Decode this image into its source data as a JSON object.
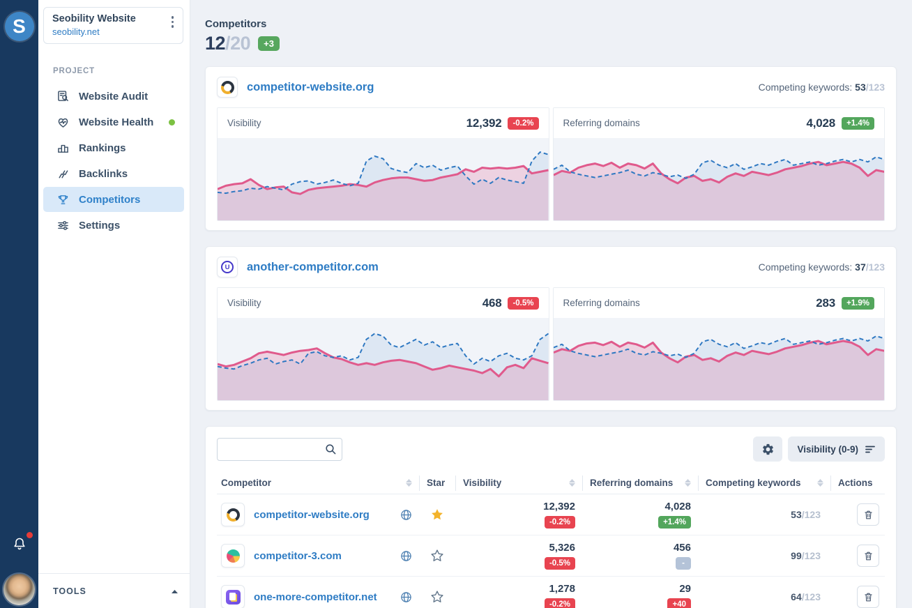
{
  "brand": {
    "logo_letter": "S"
  },
  "sidebar": {
    "project_card": {
      "title": "Seobility Website",
      "domain": "seobility.net"
    },
    "section_label": "PROJECT",
    "items": [
      {
        "label": "Website Audit"
      },
      {
        "label": "Website Health",
        "dot": true
      },
      {
        "label": "Rankings"
      },
      {
        "label": "Backlinks"
      },
      {
        "label": "Competitors",
        "active": true
      },
      {
        "label": "Settings"
      }
    ],
    "tools_label": "TOOLS"
  },
  "header": {
    "title": "Competitors",
    "count_used": "12",
    "count_sep": "/",
    "count_total": "20",
    "badge": "+3"
  },
  "cards": [
    {
      "domain": "competitor-website.org",
      "competing_label": "Competing keywords:",
      "competing_value": "53",
      "competing_total": "/123",
      "panels": [
        {
          "label": "Visibility",
          "value": "12,392",
          "badge": "-0.2%",
          "badge_type": "red"
        },
        {
          "label": "Referring domains",
          "value": "4,028",
          "badge": "+1.4%",
          "badge_type": "green"
        }
      ]
    },
    {
      "domain": "another-competitor.com",
      "competing_label": "Competing keywords:",
      "competing_value": "37",
      "competing_total": "/123",
      "panels": [
        {
          "label": "Visibility",
          "value": "468",
          "badge": "-0.5%",
          "badge_type": "red"
        },
        {
          "label": "Referring domains",
          "value": "283",
          "badge": "+1.9%",
          "badge_type": "green"
        }
      ]
    }
  ],
  "table": {
    "search_placeholder": "",
    "sort_button_label": "Visibility (0-9)",
    "columns": [
      "Competitor",
      "Star",
      "Visibility",
      "Referring domains",
      "Competing keywords",
      "Actions"
    ],
    "rows": [
      {
        "domain": "competitor-website.org",
        "starred": true,
        "visibility": "12,392",
        "visibility_badge": "-0.2%",
        "visibility_badge_type": "red",
        "referring": "4,028",
        "referring_badge": "+1.4%",
        "referring_badge_type": "green",
        "keywords": "53",
        "keywords_total": "/123"
      },
      {
        "domain": "competitor-3.com",
        "starred": false,
        "visibility": "5,326",
        "visibility_badge": "-0.5%",
        "visibility_badge_type": "red",
        "referring": "456",
        "referring_badge": "-",
        "referring_badge_type": "gray",
        "keywords": "99",
        "keywords_total": "/123"
      },
      {
        "domain": "one-more-competitor.net",
        "starred": false,
        "visibility": "1,278",
        "visibility_badge": "-0.2%",
        "visibility_badge_type": "red",
        "referring": "29",
        "referring_badge": "+40",
        "referring_badge_type": "red",
        "keywords": "64",
        "keywords_total": "/123"
      }
    ]
  },
  "chart_data": [
    {
      "card": "competitor-website.org",
      "panel": "Visibility",
      "type": "line",
      "legend": [
        "competitor (solid pink)",
        "comparison (dashed blue)"
      ],
      "colors": {
        "pink": "#e05a8c",
        "blue": "#2e78c2"
      },
      "ylim": [
        0,
        100
      ],
      "grid": false,
      "series": {
        "pink": [
          38,
          42,
          44,
          45,
          50,
          43,
          38,
          40,
          41,
          34,
          32,
          37,
          39,
          40,
          41,
          42,
          44,
          43,
          41,
          46,
          49,
          51,
          52,
          52,
          50,
          48,
          49,
          52,
          54,
          56,
          62,
          59,
          64,
          63,
          64,
          63,
          64,
          66,
          57,
          59,
          61
        ],
        "blue": [
          34,
          33,
          35,
          36,
          39,
          38,
          41,
          39,
          37,
          44,
          47,
          48,
          44,
          46,
          49,
          45,
          42,
          45,
          72,
          78,
          75,
          63,
          60,
          58,
          69,
          64,
          67,
          61,
          64,
          66,
          54,
          44,
          50,
          45,
          52,
          49,
          47,
          45,
          72,
          83,
          80
        ]
      }
    },
    {
      "card": "competitor-website.org",
      "panel": "Referring domains",
      "type": "line",
      "legend": [
        "competitor (solid pink)",
        "comparison (dashed blue)"
      ],
      "colors": {
        "pink": "#e05a8c",
        "blue": "#2e78c2"
      },
      "ylim": [
        0,
        100
      ],
      "grid": false,
      "series": {
        "pink": [
          55,
          60,
          58,
          64,
          67,
          69,
          66,
          70,
          64,
          69,
          67,
          63,
          69,
          57,
          50,
          45,
          52,
          54,
          48,
          50,
          46,
          53,
          57,
          54,
          59,
          57,
          55,
          58,
          62,
          64,
          66,
          69,
          71,
          67,
          69,
          71,
          69,
          64,
          54,
          61,
          59
        ],
        "blue": [
          62,
          67,
          59,
          56,
          54,
          52,
          54,
          56,
          58,
          61,
          56,
          54,
          58,
          56,
          53,
          55,
          51,
          56,
          70,
          73,
          67,
          64,
          69,
          62,
          65,
          69,
          67,
          71,
          74,
          67,
          69,
          71,
          67,
          69,
          72,
          74,
          71,
          74,
          71,
          77,
          74
        ]
      }
    },
    {
      "card": "another-competitor.com",
      "panel": "Visibility",
      "type": "line",
      "legend": [
        "competitor (solid pink)",
        "comparison (dashed blue)"
      ],
      "colors": {
        "pink": "#e05a8c",
        "blue": "#2e78c2"
      },
      "ylim": [
        0,
        100
      ],
      "grid": false,
      "series": {
        "pink": [
          44,
          41,
          43,
          47,
          51,
          57,
          59,
          57,
          55,
          58,
          60,
          61,
          63,
          57,
          52,
          50,
          46,
          43,
          45,
          43,
          46,
          48,
          49,
          47,
          45,
          41,
          37,
          39,
          42,
          40,
          38,
          36,
          33,
          38,
          29,
          40,
          43,
          39,
          51,
          48,
          45
        ],
        "blue": [
          41,
          39,
          38,
          42,
          45,
          49,
          51,
          44,
          47,
          49,
          44,
          57,
          59,
          54,
          52,
          54,
          49,
          52,
          74,
          81,
          78,
          67,
          64,
          69,
          74,
          67,
          71,
          64,
          67,
          69,
          54,
          44,
          51,
          47,
          54,
          57,
          51,
          49,
          54,
          74,
          81
        ]
      }
    },
    {
      "card": "another-competitor.com",
      "panel": "Referring domains",
      "type": "line",
      "legend": [
        "competitor (solid pink)",
        "comparison (dashed blue)"
      ],
      "colors": {
        "pink": "#e05a8c",
        "blue": "#2e78c2"
      },
      "ylim": [
        0,
        100
      ],
      "grid": false,
      "series": {
        "pink": [
          58,
          62,
          60,
          66,
          69,
          70,
          67,
          71,
          65,
          70,
          68,
          64,
          70,
          58,
          51,
          46,
          53,
          55,
          49,
          51,
          47,
          54,
          58,
          55,
          60,
          58,
          56,
          59,
          63,
          65,
          67,
          70,
          72,
          68,
          70,
          72,
          70,
          65,
          55,
          62,
          60
        ],
        "blue": [
          64,
          68,
          60,
          57,
          55,
          53,
          55,
          57,
          59,
          62,
          57,
          55,
          59,
          57,
          54,
          56,
          52,
          57,
          71,
          74,
          68,
          65,
          70,
          63,
          66,
          70,
          68,
          72,
          75,
          68,
          70,
          72,
          68,
          70,
          73,
          75,
          72,
          75,
          72,
          78,
          75
        ]
      }
    }
  ]
}
